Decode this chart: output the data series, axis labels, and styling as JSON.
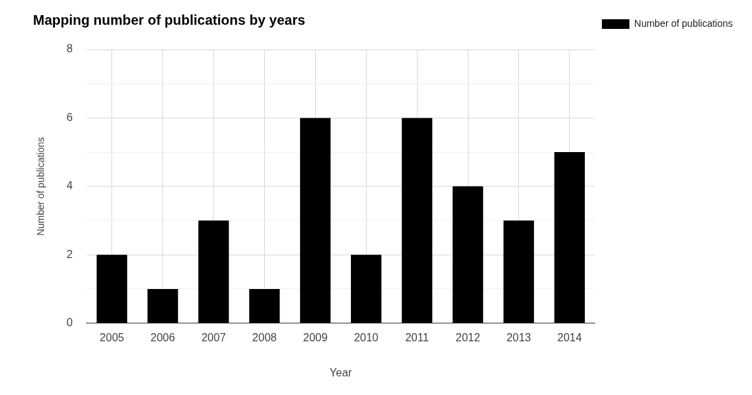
{
  "chart_data": {
    "type": "bar",
    "title": "Mapping number of publications by years",
    "xlabel": "Year",
    "ylabel": "Number of publications",
    "categories": [
      "2005",
      "2006",
      "2007",
      "2008",
      "2009",
      "2010",
      "2011",
      "2012",
      "2013",
      "2014"
    ],
    "series": [
      {
        "name": "Number of publications",
        "color": "#000000",
        "values": [
          2,
          1,
          3,
          1,
          6,
          2,
          6,
          4,
          3,
          5
        ]
      }
    ],
    "ylim": [
      0,
      8
    ],
    "yticks": [
      0,
      {
        "value": 1,
        "label": null
      },
      2,
      {
        "value": 3,
        "label": null
      },
      4,
      {
        "value": 5,
        "label": null
      },
      6,
      {
        "value": 7,
        "label": null
      },
      8
    ],
    "grid": true,
    "legend": "top right"
  }
}
